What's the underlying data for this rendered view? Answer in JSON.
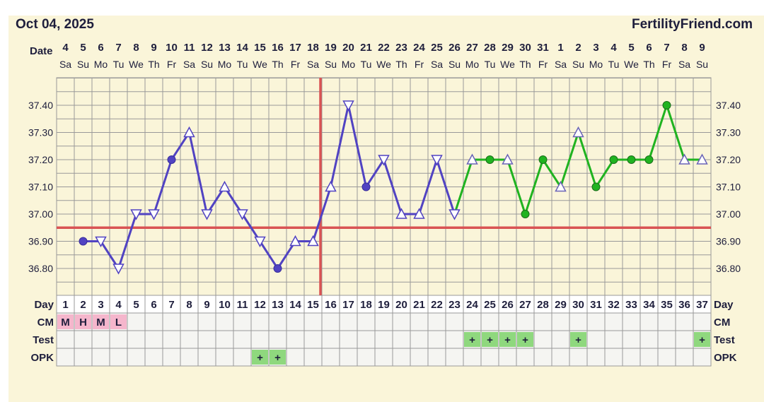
{
  "header": {
    "date": "Oct 04, 2025",
    "brand": "FertilityFriend.com"
  },
  "colors": {
    "background": "#faf5d9",
    "grid": "#999999",
    "pre_ovulation_line": "#5143c2",
    "post_ovulation_line": "#20b320",
    "coverline": "#d95353",
    "ovulation_marker": "#d95353",
    "cm_cell": "#f5b6cc",
    "test_cell": "#8fd87e",
    "opk_cell": "#8fd87e"
  },
  "chart_data": {
    "type": "line",
    "date_row_label": "Date",
    "day_row_label": "Day",
    "dates": [
      "4",
      "5",
      "6",
      "7",
      "8",
      "9",
      "10",
      "11",
      "12",
      "13",
      "14",
      "15",
      "16",
      "17",
      "18",
      "19",
      "20",
      "21",
      "22",
      "23",
      "24",
      "25",
      "26",
      "27",
      "28",
      "29",
      "30",
      "31",
      "1",
      "2",
      "3",
      "4",
      "5",
      "6",
      "7",
      "8",
      "9"
    ],
    "weekdays": [
      "Sa",
      "Su",
      "Mo",
      "Tu",
      "We",
      "Th",
      "Fr",
      "Sa",
      "Su",
      "Mo",
      "Tu",
      "We",
      "Th",
      "Fr",
      "Sa",
      "Su",
      "Mo",
      "Tu",
      "We",
      "Th",
      "Fr",
      "Sa",
      "Su",
      "Mo",
      "Tu",
      "We",
      "Th",
      "Fr",
      "Sa",
      "Su",
      "Mo",
      "Tu",
      "We",
      "Th",
      "Fr",
      "Sa",
      "Su"
    ],
    "cycle_days": [
      "1",
      "2",
      "3",
      "4",
      "5",
      "6",
      "7",
      "8",
      "9",
      "10",
      "11",
      "12",
      "13",
      "14",
      "15",
      "16",
      "17",
      "18",
      "19",
      "20",
      "21",
      "22",
      "23",
      "24",
      "25",
      "26",
      "27",
      "28",
      "29",
      "30",
      "31",
      "32",
      "33",
      "34",
      "35",
      "36",
      "37"
    ],
    "y_ticks": [
      "36.80",
      "36.90",
      "37.00",
      "37.10",
      "37.20",
      "37.30",
      "37.40"
    ],
    "ylim": [
      36.7,
      37.5
    ],
    "coverline": 36.95,
    "ovulation_day": 15,
    "temperatures": [
      {
        "day": 2,
        "temp": 36.9,
        "marker": "circle"
      },
      {
        "day": 3,
        "temp": 36.9,
        "marker": "triangle-down"
      },
      {
        "day": 4,
        "temp": 36.8,
        "marker": "triangle-down"
      },
      {
        "day": 5,
        "temp": 37.0,
        "marker": "triangle-down"
      },
      {
        "day": 6,
        "temp": 37.0,
        "marker": "triangle-down"
      },
      {
        "day": 7,
        "temp": 37.2,
        "marker": "circle"
      },
      {
        "day": 8,
        "temp": 37.3,
        "marker": "triangle-up"
      },
      {
        "day": 9,
        "temp": 37.0,
        "marker": "triangle-down"
      },
      {
        "day": 10,
        "temp": 37.1,
        "marker": "triangle-up"
      },
      {
        "day": 11,
        "temp": 37.0,
        "marker": "triangle-down"
      },
      {
        "day": 12,
        "temp": 36.9,
        "marker": "triangle-down"
      },
      {
        "day": 13,
        "temp": 36.8,
        "marker": "circle"
      },
      {
        "day": 14,
        "temp": 36.9,
        "marker": "triangle-up"
      },
      {
        "day": 15,
        "temp": 36.9,
        "marker": "triangle-up"
      },
      {
        "day": 16,
        "temp": 37.1,
        "marker": "triangle-up"
      },
      {
        "day": 17,
        "temp": 37.4,
        "marker": "triangle-down"
      },
      {
        "day": 18,
        "temp": 37.1,
        "marker": "circle"
      },
      {
        "day": 19,
        "temp": 37.2,
        "marker": "triangle-down"
      },
      {
        "day": 20,
        "temp": 37.0,
        "marker": "triangle-up"
      },
      {
        "day": 21,
        "temp": 37.0,
        "marker": "triangle-up"
      },
      {
        "day": 22,
        "temp": 37.2,
        "marker": "triangle-down"
      },
      {
        "day": 23,
        "temp": 37.0,
        "marker": "triangle-down"
      },
      {
        "day": 24,
        "temp": 37.2,
        "marker": "triangle-up"
      },
      {
        "day": 25,
        "temp": 37.2,
        "marker": "circle"
      },
      {
        "day": 26,
        "temp": 37.2,
        "marker": "triangle-up"
      },
      {
        "day": 27,
        "temp": 37.0,
        "marker": "circle"
      },
      {
        "day": 28,
        "temp": 37.2,
        "marker": "circle"
      },
      {
        "day": 29,
        "temp": 37.1,
        "marker": "triangle-up"
      },
      {
        "day": 30,
        "temp": 37.3,
        "marker": "triangle-up"
      },
      {
        "day": 31,
        "temp": 37.1,
        "marker": "circle"
      },
      {
        "day": 32,
        "temp": 37.2,
        "marker": "circle"
      },
      {
        "day": 33,
        "temp": 37.2,
        "marker": "circle"
      },
      {
        "day": 34,
        "temp": 37.2,
        "marker": "circle"
      },
      {
        "day": 35,
        "temp": 37.4,
        "marker": "circle"
      },
      {
        "day": 36,
        "temp": 37.2,
        "marker": "triangle-up"
      },
      {
        "day": 37,
        "temp": 37.2,
        "marker": "triangle-up"
      }
    ],
    "rows": [
      {
        "label": "CM",
        "cells": [
          {
            "day": 1,
            "text": "M"
          },
          {
            "day": 2,
            "text": "H"
          },
          {
            "day": 3,
            "text": "M"
          },
          {
            "day": 4,
            "text": "L"
          }
        ]
      },
      {
        "label": "Test",
        "cells": [
          {
            "day": 24,
            "text": "+"
          },
          {
            "day": 25,
            "text": "+"
          },
          {
            "day": 26,
            "text": "+"
          },
          {
            "day": 27,
            "text": "+"
          },
          {
            "day": 30,
            "text": "+"
          },
          {
            "day": 37,
            "text": "+"
          }
        ]
      },
      {
        "label": "OPK",
        "cells": [
          {
            "day": 12,
            "text": "+"
          },
          {
            "day": 13,
            "text": "+"
          }
        ]
      }
    ]
  }
}
